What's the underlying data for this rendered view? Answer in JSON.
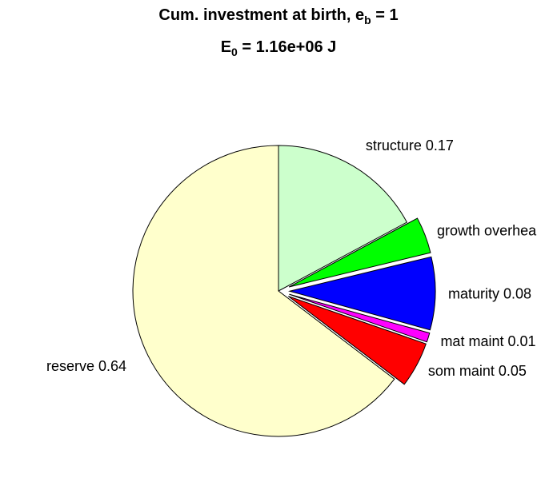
{
  "title": {
    "line1_prefix": "Cum. investment at birth, e",
    "line1_sub": "b",
    "line1_suffix": " = 1",
    "line2_prefix": "E",
    "line2_sub": "0",
    "line2_suffix": " = 1.16e+06 J"
  },
  "chart_data": {
    "type": "pie",
    "title": "Cum. investment at birth, e_b = 1",
    "subtitle": "E_0 = 1.16e+06 J",
    "slices": [
      {
        "label": "structure 0.17",
        "value": 0.17,
        "color": "#ccffcc",
        "exploded": false
      },
      {
        "label": "growth overhea",
        "value": 0.04,
        "color": "#00ff00",
        "exploded": true
      },
      {
        "label": "maturity 0.08",
        "value": 0.08,
        "color": "#0000ff",
        "exploded": true
      },
      {
        "label": "mat maint 0.01",
        "value": 0.01,
        "color": "#ff00ff",
        "exploded": true
      },
      {
        "label": "som maint 0.05",
        "value": 0.05,
        "color": "#ff0000",
        "exploded": true
      },
      {
        "label": "reserve 0.64",
        "value": 0.64,
        "color": "#ffffcc",
        "exploded": false
      }
    ],
    "start": "top",
    "direction": "clockwise"
  }
}
